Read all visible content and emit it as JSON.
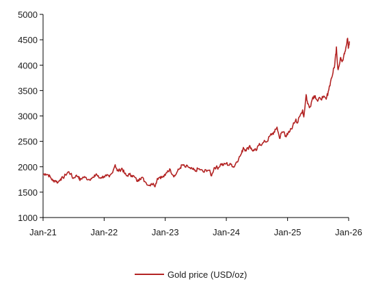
{
  "chart_data": {
    "type": "line",
    "title": "",
    "xlabel": "",
    "ylabel": "",
    "ylim": [
      1000,
      5000
    ],
    "y_ticks": [
      1000,
      1500,
      2000,
      2500,
      3000,
      3500,
      4000,
      4500,
      5000
    ],
    "x_ticks": [
      {
        "date": "2021-01-01",
        "label": "Jan-21"
      },
      {
        "date": "2022-01-01",
        "label": "Jan-22"
      },
      {
        "date": "2023-01-01",
        "label": "Jan-23"
      },
      {
        "date": "2024-01-01",
        "label": "Jan-24"
      },
      {
        "date": "2025-01-01",
        "label": "Jan-25"
      },
      {
        "date": "2026-01-01",
        "label": "Jan-26"
      }
    ],
    "xlim": [
      "2021-01-01",
      "2026-01-01"
    ],
    "grid": false,
    "legend_position": "bottom-center",
    "series": [
      {
        "name": "Gold price (USD/oz)",
        "color": "#b22222",
        "points": [
          [
            "2021-01-01",
            1850
          ],
          [
            "2021-01-15",
            1860
          ],
          [
            "2021-02-01",
            1840
          ],
          [
            "2021-02-15",
            1790
          ],
          [
            "2021-03-01",
            1720
          ],
          [
            "2021-03-15",
            1730
          ],
          [
            "2021-03-31",
            1690
          ],
          [
            "2021-04-15",
            1760
          ],
          [
            "2021-05-01",
            1780
          ],
          [
            "2021-05-15",
            1840
          ],
          [
            "2021-06-01",
            1900
          ],
          [
            "2021-06-15",
            1860
          ],
          [
            "2021-06-30",
            1770
          ],
          [
            "2021-07-15",
            1820
          ],
          [
            "2021-08-01",
            1810
          ],
          [
            "2021-08-10",
            1730
          ],
          [
            "2021-08-25",
            1790
          ],
          [
            "2021-09-10",
            1790
          ],
          [
            "2021-09-30",
            1750
          ],
          [
            "2021-10-15",
            1770
          ],
          [
            "2021-11-01",
            1790
          ],
          [
            "2021-11-15",
            1860
          ],
          [
            "2021-12-01",
            1780
          ],
          [
            "2021-12-15",
            1790
          ],
          [
            "2022-01-01",
            1810
          ],
          [
            "2022-01-15",
            1820
          ],
          [
            "2022-02-01",
            1800
          ],
          [
            "2022-02-15",
            1870
          ],
          [
            "2022-03-08",
            2040
          ],
          [
            "2022-03-20",
            1920
          ],
          [
            "2022-04-05",
            1930
          ],
          [
            "2022-04-18",
            1970
          ],
          [
            "2022-05-01",
            1880
          ],
          [
            "2022-05-15",
            1820
          ],
          [
            "2022-06-01",
            1850
          ],
          [
            "2022-06-15",
            1830
          ],
          [
            "2022-07-01",
            1800
          ],
          [
            "2022-07-20",
            1710
          ],
          [
            "2022-08-01",
            1770
          ],
          [
            "2022-08-15",
            1790
          ],
          [
            "2022-09-01",
            1710
          ],
          [
            "2022-09-28",
            1630
          ],
          [
            "2022-10-10",
            1670
          ],
          [
            "2022-10-25",
            1650
          ],
          [
            "2022-11-03",
            1630
          ],
          [
            "2022-11-15",
            1770
          ],
          [
            "2022-12-01",
            1800
          ],
          [
            "2022-12-15",
            1790
          ],
          [
            "2023-01-01",
            1830
          ],
          [
            "2023-01-15",
            1920
          ],
          [
            "2023-02-01",
            1940
          ],
          [
            "2023-02-15",
            1840
          ],
          [
            "2023-02-28",
            1820
          ],
          [
            "2023-03-15",
            1910
          ],
          [
            "2023-04-01",
            1980
          ],
          [
            "2023-04-13",
            2040
          ],
          [
            "2023-05-01",
            1990
          ],
          [
            "2023-05-15",
            2010
          ],
          [
            "2023-06-01",
            1960
          ],
          [
            "2023-06-15",
            1950
          ],
          [
            "2023-06-30",
            1910
          ],
          [
            "2023-07-15",
            1960
          ],
          [
            "2023-08-01",
            1940
          ],
          [
            "2023-08-20",
            1890
          ],
          [
            "2023-09-01",
            1940
          ],
          [
            "2023-09-20",
            1930
          ],
          [
            "2023-10-05",
            1820
          ],
          [
            "2023-10-20",
            1980
          ],
          [
            "2023-11-01",
            1990
          ],
          [
            "2023-11-15",
            1980
          ],
          [
            "2023-12-01",
            2060
          ],
          [
            "2023-12-15",
            2030
          ],
          [
            "2024-01-01",
            2070
          ],
          [
            "2024-01-15",
            2030
          ],
          [
            "2024-02-01",
            2050
          ],
          [
            "2024-02-14",
            1990
          ],
          [
            "2024-03-01",
            2090
          ],
          [
            "2024-03-15",
            2160
          ],
          [
            "2024-04-01",
            2260
          ],
          [
            "2024-04-12",
            2380
          ],
          [
            "2024-04-25",
            2330
          ],
          [
            "2024-05-10",
            2360
          ],
          [
            "2024-05-20",
            2420
          ],
          [
            "2024-06-01",
            2330
          ],
          [
            "2024-06-15",
            2320
          ],
          [
            "2024-07-01",
            2330
          ],
          [
            "2024-07-17",
            2460
          ],
          [
            "2024-08-01",
            2440
          ],
          [
            "2024-08-20",
            2500
          ],
          [
            "2024-09-01",
            2500
          ],
          [
            "2024-09-20",
            2620
          ],
          [
            "2024-10-01",
            2650
          ],
          [
            "2024-10-15",
            2680
          ],
          [
            "2024-10-30",
            2780
          ],
          [
            "2024-11-14",
            2560
          ],
          [
            "2024-11-25",
            2660
          ],
          [
            "2024-12-10",
            2690
          ],
          [
            "2024-12-20",
            2610
          ],
          [
            "2025-01-01",
            2630
          ],
          [
            "2025-01-15",
            2700
          ],
          [
            "2025-02-01",
            2800
          ],
          [
            "2025-02-20",
            2940
          ],
          [
            "2025-03-01",
            2860
          ],
          [
            "2025-03-15",
            2990
          ],
          [
            "2025-04-01",
            3120
          ],
          [
            "2025-04-08",
            2980
          ],
          [
            "2025-04-22",
            3420
          ],
          [
            "2025-05-01",
            3240
          ],
          [
            "2025-05-15",
            3180
          ],
          [
            "2025-06-01",
            3370
          ],
          [
            "2025-06-15",
            3400
          ],
          [
            "2025-06-30",
            3290
          ],
          [
            "2025-07-15",
            3350
          ],
          [
            "2025-08-01",
            3360
          ],
          [
            "2025-08-20",
            3330
          ],
          [
            "2025-09-01",
            3480
          ],
          [
            "2025-09-15",
            3680
          ],
          [
            "2025-09-30",
            3860
          ],
          [
            "2025-10-10",
            4020
          ],
          [
            "2025-10-20",
            4360
          ],
          [
            "2025-10-28",
            3940
          ],
          [
            "2025-11-05",
            3980
          ],
          [
            "2025-11-15",
            4150
          ],
          [
            "2025-11-25",
            4090
          ],
          [
            "2025-12-05",
            4230
          ],
          [
            "2025-12-15",
            4340
          ],
          [
            "2025-12-26",
            4530
          ],
          [
            "2025-12-30",
            4330
          ],
          [
            "2026-01-02",
            4390
          ],
          [
            "2026-01-06",
            4450
          ]
        ]
      }
    ]
  }
}
